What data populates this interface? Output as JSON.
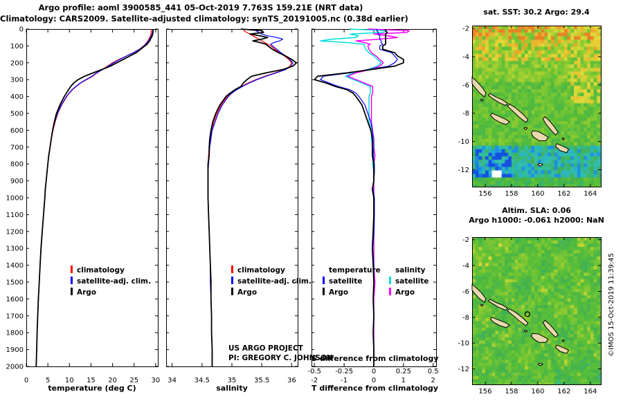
{
  "titles": {
    "line1": "Argo profile: aoml 3900585_441 05-Oct-2019 7.763S 159.21E (NRT data)",
    "line2": "Climatology: CARS2009. Satellite-adjusted climatology: synTS_20191005.nc (0.38d earlier)"
  },
  "annotations": {
    "project": "US ARGO PROJECT",
    "pi": "PI: GREGORY C. JOHNSON",
    "stamp": "©IMOS 15-Oct-2019 11:39:45"
  },
  "chart_data": {
    "type": "line",
    "depths": [
      0,
      10,
      20,
      30,
      40,
      50,
      60,
      70,
      80,
      90,
      100,
      120,
      140,
      160,
      180,
      200,
      220,
      240,
      260,
      280,
      300,
      320,
      340,
      360,
      380,
      400,
      450,
      500,
      550,
      600,
      650,
      700,
      750,
      800,
      850,
      900,
      950,
      1000,
      1100,
      1200,
      1300,
      1400,
      1500,
      1600,
      1700,
      1800,
      1900,
      2000
    ],
    "ylim": [
      0,
      2000
    ],
    "yticks": [
      0,
      100,
      200,
      300,
      400,
      500,
      600,
      700,
      800,
      900,
      1000,
      1100,
      1200,
      1300,
      1400,
      1500,
      1600,
      1700,
      1800,
      1900,
      2000
    ],
    "temperature": {
      "xlabel": "temperature (deg C)",
      "xlim": [
        0,
        30.5
      ],
      "xticks": [
        0,
        5,
        10,
        15,
        20,
        25,
        30
      ],
      "series": [
        {
          "name": "climatology",
          "color": "#ff0000",
          "values": [
            29.0,
            29.0,
            28.95,
            28.9,
            28.8,
            28.6,
            28.4,
            28.2,
            27.9,
            27.6,
            27.2,
            26.2,
            24.8,
            23.2,
            21.5,
            20.0,
            18.8,
            17.6,
            16.4,
            15.4,
            14.0,
            12.6,
            11.6,
            10.7,
            10.0,
            9.4,
            8.2,
            7.3,
            6.7,
            6.2,
            5.85,
            5.55,
            5.25,
            5.0,
            4.8,
            4.6,
            4.45,
            4.3,
            4.0,
            3.72,
            3.45,
            3.22,
            3.0,
            2.82,
            2.65,
            2.52,
            2.4,
            2.3
          ]
        },
        {
          "name": "satellite-adj. clim.",
          "color": "#0000ff",
          "values": [
            29.3,
            29.3,
            29.25,
            29.15,
            29.0,
            28.8,
            28.6,
            28.35,
            28.05,
            27.7,
            27.3,
            26.3,
            24.9,
            23.3,
            21.7,
            20.3,
            19.0,
            17.7,
            16.3,
            15.2,
            13.8,
            12.5,
            11.5,
            10.6,
            9.9,
            9.3,
            8.1,
            7.2,
            6.6,
            6.15,
            5.8,
            5.5,
            5.22,
            4.98,
            4.78,
            4.6,
            4.43,
            4.28,
            3.98,
            3.69,
            3.44,
            3.2,
            3.0,
            2.82,
            2.65,
            2.52,
            2.4,
            2.3
          ]
        },
        {
          "name": "Argo",
          "color": "#000000",
          "values": [
            29.4,
            29.4,
            29.4,
            29.3,
            29.2,
            29.0,
            28.8,
            28.6,
            28.3,
            28.0,
            27.5,
            26.5,
            25.5,
            24.0,
            22.5,
            21.0,
            19.5,
            17.5,
            15.5,
            13.5,
            12.0,
            11.0,
            10.3,
            9.8,
            9.3,
            8.8,
            7.8,
            7.0,
            6.5,
            6.1,
            5.8,
            5.5,
            5.2,
            5.0,
            4.8,
            4.6,
            4.4,
            4.3,
            4.0,
            3.7,
            3.4,
            3.2,
            3.0,
            2.8,
            2.65,
            2.5,
            2.4,
            2.3
          ]
        }
      ]
    },
    "salinity": {
      "xlabel": "salinity",
      "xlim": [
        33.9,
        36.1
      ],
      "xticks": [
        34,
        34.5,
        35,
        35.5,
        36
      ],
      "series": [
        {
          "name": "climatology",
          "color": "#ff0000",
          "values": [
            35.2,
            35.2,
            35.25,
            35.3,
            35.35,
            35.4,
            35.45,
            35.5,
            35.55,
            35.6,
            35.65,
            35.72,
            35.8,
            35.88,
            35.95,
            36.0,
            35.97,
            35.88,
            35.72,
            35.55,
            35.4,
            35.27,
            35.16,
            35.06,
            34.98,
            34.92,
            34.82,
            34.75,
            34.7,
            34.66,
            34.64,
            34.62,
            34.61,
            34.6,
            34.6,
            34.6,
            34.6,
            34.6,
            34.61,
            34.62,
            34.63,
            34.64,
            34.64,
            34.65,
            34.66,
            34.66,
            34.67,
            34.67
          ]
        },
        {
          "name": "satellite-adj. clim.",
          "color": "#0000ff",
          "values": [
            35.35,
            35.4,
            35.45,
            35.5,
            35.6,
            35.75,
            35.85,
            35.8,
            35.7,
            35.65,
            35.68,
            35.75,
            35.82,
            35.9,
            35.97,
            36.02,
            35.99,
            35.9,
            35.74,
            35.57,
            35.42,
            35.29,
            35.18,
            35.08,
            35.0,
            34.94,
            34.84,
            34.77,
            34.72,
            34.67,
            34.65,
            34.63,
            34.62,
            34.61,
            34.6,
            34.6,
            34.6,
            34.6,
            34.61,
            34.62,
            34.63,
            34.64,
            34.64,
            34.65,
            34.66,
            34.66,
            34.67,
            34.67
          ]
        },
        {
          "name": "Argo",
          "color": "#000000",
          "values": [
            35.15,
            35.5,
            35.53,
            35.3,
            35.47,
            35.6,
            35.5,
            35.35,
            35.47,
            35.57,
            35.6,
            35.68,
            35.78,
            35.9,
            36.0,
            36.08,
            36.02,
            35.85,
            35.57,
            35.33,
            35.25,
            35.19,
            35.15,
            35.05,
            34.97,
            34.9,
            34.8,
            34.73,
            34.68,
            34.65,
            34.63,
            34.62,
            34.62,
            34.6,
            34.6,
            34.6,
            34.6,
            34.6,
            34.61,
            34.62,
            34.63,
            34.64,
            34.65,
            34.65,
            34.66,
            34.66,
            34.67,
            34.67
          ]
        }
      ]
    },
    "difference": {
      "xlabel": "T difference from climatology",
      "xlabel_s": "S difference from climatology",
      "xlim_t": [
        -2.1,
        2.1
      ],
      "xticks_t": [
        -2,
        -1,
        0,
        1,
        2
      ],
      "xlim_s": [
        -0.525,
        0.525
      ],
      "xticks_s": [
        -0.5,
        -0.25,
        0,
        0.25,
        0.5
      ],
      "legend": {
        "temperature_header": "temperature",
        "salinity_header": "salinity",
        "sat_label": "satellite",
        "argo_label": "Argo",
        "t_sat_color": "#0000ff",
        "t_argo_color": "#000000",
        "s_sat_color": "#00dcdc",
        "s_argo_color": "#ff00ff"
      },
      "series": [
        {
          "name": "satellite (T)",
          "axis": "T",
          "color": "#0000ff",
          "values": [
            0.1,
            0.1,
            0.15,
            0.15,
            0.2,
            0.2,
            0.2,
            0.25,
            0.25,
            0.3,
            0.2,
            0.2,
            0.6,
            0.7,
            0.8,
            0.7,
            0.5,
            -0.2,
            -0.8,
            -1.7,
            -1.8,
            -1.5,
            -1.2,
            -0.8,
            -0.6,
            -0.5,
            -0.3,
            -0.2,
            -0.1,
            -0.05,
            0,
            0,
            -0.02,
            0.02,
            0.02,
            0,
            -0.03,
            0.02,
            0.02,
            0.01,
            -0.04,
            0,
            0,
            -0.02,
            0,
            -0.02,
            0,
            0
          ]
        },
        {
          "name": "Argo (T)",
          "axis": "T",
          "color": "#000000",
          "values": [
            0.4,
            0.4,
            0.45,
            0.4,
            0.4,
            0.4,
            0.4,
            0.4,
            0.4,
            0.4,
            0.3,
            0.3,
            0.7,
            0.8,
            1.0,
            1.0,
            0.7,
            -0.1,
            -0.9,
            -1.9,
            -2.0,
            -1.6,
            -1.3,
            -0.9,
            -0.7,
            -0.6,
            -0.4,
            -0.3,
            -0.2,
            -0.1,
            -0.05,
            -0.05,
            -0.05,
            0,
            0,
            0,
            -0.05,
            0,
            0,
            -0.02,
            -0.05,
            -0.02,
            0,
            -0.02,
            0,
            -0.02,
            0,
            0
          ]
        },
        {
          "name": "satellite (S)",
          "axis": "S",
          "color": "#00dcdc",
          "values": [
            -0.2,
            0.1,
            0.08,
            -0.2,
            -0.13,
            -0.15,
            -0.35,
            -0.45,
            -0.23,
            -0.08,
            -0.08,
            -0.07,
            -0.04,
            0,
            0.03,
            0.06,
            0.03,
            -0.05,
            -0.17,
            -0.24,
            -0.17,
            -0.1,
            -0.03,
            -0.03,
            -0.03,
            -0.04,
            -0.04,
            -0.04,
            -0.04,
            -0.02,
            -0.02,
            -0.01,
            0,
            -0.01,
            0,
            0,
            0,
            0,
            0,
            0,
            0,
            0,
            0.01,
            0,
            0,
            0,
            0,
            0
          ]
        },
        {
          "name": "Argo (S)",
          "axis": "S",
          "color": "#ff00ff",
          "values": [
            -0.05,
            0.3,
            0.28,
            0,
            0.12,
            0.2,
            0.05,
            -0.15,
            -0.08,
            -0.03,
            -0.05,
            -0.04,
            -0.02,
            0.02,
            0.05,
            0.08,
            0.05,
            -0.03,
            -0.15,
            -0.22,
            -0.15,
            -0.08,
            -0.01,
            -0.01,
            -0.01,
            -0.02,
            -0.02,
            -0.02,
            -0.02,
            -0.01,
            -0.01,
            0,
            0.01,
            0,
            0,
            0,
            0,
            0,
            0,
            0,
            0,
            0,
            0.01,
            0,
            0,
            0,
            0,
            0
          ]
        }
      ]
    },
    "maps": [
      {
        "id": "sst",
        "title": "sat. SST: 30.2  Argo: 29.4",
        "lon_range": [
          155,
          164.8
        ],
        "lat_range": [
          -1.8,
          -13.2
        ],
        "lon_ticks": [
          156,
          158,
          160,
          162,
          164
        ],
        "lat_ticks": [
          -2,
          -4,
          -6,
          -8,
          -10,
          -12
        ],
        "colormap": "jet",
        "seed": 7,
        "missing_patch": {
          "lon": [
            156.45,
            157.2
          ],
          "lat": [
            -12.55,
            -12.0
          ]
        }
      },
      {
        "id": "sla",
        "title_line1": "Altim. SLA: 0.06",
        "title_line2": "Argo h1000: -0.061 h2000: NaN",
        "lon_range": [
          155,
          164.8
        ],
        "lat_range": [
          -1.8,
          -13.2
        ],
        "lon_ticks": [
          156,
          158,
          160,
          162,
          164
        ],
        "lat_ticks": [
          -2,
          -4,
          -6,
          -8,
          -10,
          -12
        ],
        "colormap": "green",
        "seed": 13,
        "argo_marker": {
          "lon": 159.21,
          "lat": -7.763
        }
      }
    ],
    "islands": [
      {
        "name": "bougainville",
        "pts": [
          [
            155.0,
            -5.45
          ],
          [
            155.3,
            -5.7
          ],
          [
            155.7,
            -6.1
          ],
          [
            156.05,
            -6.55
          ],
          [
            155.95,
            -6.85
          ],
          [
            155.55,
            -6.55
          ],
          [
            155.15,
            -6.1
          ],
          [
            155.0,
            -5.9
          ]
        ]
      },
      {
        "name": "shortland",
        "pts": [
          [
            155.7,
            -7.0
          ],
          [
            155.85,
            -7.05
          ],
          [
            155.78,
            -7.15
          ],
          [
            155.65,
            -7.08
          ]
        ]
      },
      {
        "name": "choiseul",
        "pts": [
          [
            156.35,
            -6.6
          ],
          [
            156.8,
            -6.85
          ],
          [
            157.3,
            -7.05
          ],
          [
            157.7,
            -7.3
          ],
          [
            157.55,
            -7.45
          ],
          [
            157.05,
            -7.25
          ],
          [
            156.55,
            -6.95
          ],
          [
            156.25,
            -6.75
          ]
        ]
      },
      {
        "name": "santa-isabel",
        "pts": [
          [
            157.85,
            -7.35
          ],
          [
            158.35,
            -7.65
          ],
          [
            158.85,
            -8.05
          ],
          [
            159.25,
            -8.45
          ],
          [
            159.1,
            -8.65
          ],
          [
            158.6,
            -8.3
          ],
          [
            158.1,
            -7.85
          ],
          [
            157.7,
            -7.5
          ]
        ]
      },
      {
        "name": "new-georgia",
        "pts": [
          [
            156.5,
            -8.0
          ],
          [
            157.0,
            -8.2
          ],
          [
            157.5,
            -8.4
          ],
          [
            157.85,
            -8.6
          ],
          [
            157.6,
            -8.8
          ],
          [
            157.1,
            -8.65
          ],
          [
            156.65,
            -8.4
          ],
          [
            156.4,
            -8.15
          ]
        ]
      },
      {
        "name": "malaita",
        "pts": [
          [
            160.55,
            -8.25
          ],
          [
            160.9,
            -8.55
          ],
          [
            161.25,
            -8.95
          ],
          [
            161.55,
            -9.35
          ],
          [
            161.35,
            -9.55
          ],
          [
            161.0,
            -9.2
          ],
          [
            160.6,
            -8.75
          ],
          [
            160.4,
            -8.4
          ]
        ]
      },
      {
        "name": "guadalcanal",
        "pts": [
          [
            159.6,
            -9.25
          ],
          [
            160.05,
            -9.3
          ],
          [
            160.45,
            -9.5
          ],
          [
            160.8,
            -9.7
          ],
          [
            160.6,
            -9.95
          ],
          [
            160.1,
            -9.95
          ],
          [
            159.7,
            -9.7
          ],
          [
            159.5,
            -9.45
          ]
        ]
      },
      {
        "name": "makira",
        "pts": [
          [
            161.45,
            -10.15
          ],
          [
            161.95,
            -10.35
          ],
          [
            162.35,
            -10.55
          ],
          [
            162.2,
            -10.8
          ],
          [
            161.7,
            -10.65
          ],
          [
            161.35,
            -10.35
          ]
        ]
      },
      {
        "name": "florida-islands",
        "pts": [
          [
            159.0,
            -9.0
          ],
          [
            159.2,
            -9.05
          ],
          [
            159.1,
            -9.17
          ],
          [
            158.95,
            -9.08
          ]
        ]
      },
      {
        "name": "rennell",
        "pts": [
          [
            160.1,
            -11.55
          ],
          [
            160.38,
            -11.62
          ],
          [
            160.22,
            -11.75
          ],
          [
            160.02,
            -11.65
          ]
        ]
      },
      {
        "name": "ulawa",
        "pts": [
          [
            161.9,
            -9.75
          ],
          [
            162.02,
            -9.8
          ],
          [
            161.95,
            -9.9
          ],
          [
            161.85,
            -9.82
          ]
        ]
      }
    ]
  }
}
